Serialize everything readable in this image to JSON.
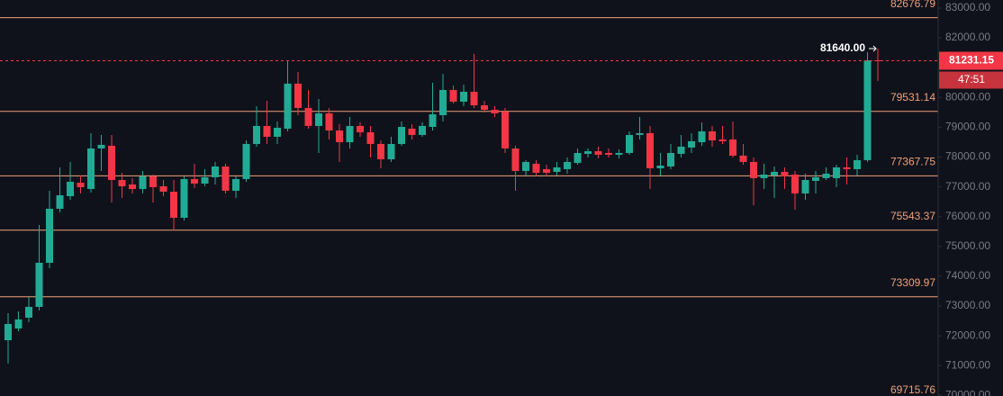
{
  "chart_data": {
    "type": "candlestick",
    "up_color": "#22ab94",
    "down_color": "#f23645",
    "level_color": "#f0a07a",
    "ylim": [
      69980,
      83270
    ],
    "yticks": [
      {
        "value": 70000,
        "label": "70000.00"
      },
      {
        "value": 71000,
        "label": "71000.00"
      },
      {
        "value": 72000,
        "label": "72000.00"
      },
      {
        "value": 73000,
        "label": "73000.00"
      },
      {
        "value": 74000,
        "label": "74000.00"
      },
      {
        "value": 75000,
        "label": "75000.00"
      },
      {
        "value": 76000,
        "label": "76000.00"
      },
      {
        "value": 77000,
        "label": "77000.00"
      },
      {
        "value": 78000,
        "label": "78000.00"
      },
      {
        "value": 79000,
        "label": "79000.00"
      },
      {
        "value": 80000,
        "label": "80000.00"
      },
      {
        "value": 82000,
        "label": "82000.00"
      },
      {
        "value": 83000,
        "label": "83000.00"
      }
    ],
    "levels": [
      82676.79,
      79531.14,
      77367.75,
      75543.37,
      73309.97,
      69715.76
    ],
    "high_annotation": {
      "value": 81640,
      "label": "81640.00"
    },
    "countdown": "47:51",
    "open": [
      71853,
      72246,
      72609,
      72971,
      74451,
      76263,
      76686,
      77139,
      76928,
      78287,
      78378,
      77230,
      77079,
      76928,
      77351,
      77019,
      76837,
      75961,
      77260,
      77109,
      77321,
      77683,
      76868,
      77260,
      78438,
      79043,
      78680,
      78952,
      80463,
      79647,
      79043,
      79466,
      78892,
      78499,
      79043,
      78831,
      78438,
      77925,
      78438,
      78952,
      78741,
      79012,
      79405,
      80251,
      79858,
      80190,
      79737,
      79586,
      79526,
      78287,
      77532,
      77774,
      77593,
      77502,
      77593,
      77804,
      78106,
      78197,
      78136,
      78076,
      78136,
      78741,
      78801,
      77623,
      77683,
      78106,
      78318,
      78499,
      78861,
      78590,
      78590,
      78046,
      77834,
      77291,
      77381,
      77502,
      77412,
      76777,
      77200,
      77291,
      77291,
      77653,
      77593,
      77895,
      81248
    ],
    "high": [
      72760,
      72820,
      73303,
      75720,
      76868,
      77653,
      77834,
      77381,
      78801,
      78741,
      78741,
      77472,
      77291,
      77532,
      77412,
      77230,
      77230,
      77351,
      77774,
      77593,
      77834,
      77774,
      77351,
      78559,
      79707,
      79888,
      79194,
      81218,
      80855,
      80251,
      79949,
      79647,
      79103,
      79345,
      79163,
      79043,
      78559,
      78680,
      79194,
      79103,
      79163,
      80493,
      80795,
      80402,
      80432,
      81460,
      79888,
      79707,
      79647,
      78378,
      77895,
      77895,
      77744,
      77834,
      77985,
      78287,
      78287,
      78348,
      78287,
      78257,
      78861,
      79345,
      79043,
      78136,
      78438,
      78741,
      78801,
      79163,
      79043,
      79043,
      79194,
      78438,
      77985,
      77774,
      77683,
      77653,
      77532,
      77442,
      77532,
      77653,
      77744,
      77985,
      78076,
      81520,
      81640
    ],
    "low": [
      71068,
      72155,
      72457,
      72851,
      74270,
      76143,
      76565,
      76777,
      76807,
      77532,
      76475,
      76626,
      76777,
      76777,
      76475,
      76686,
      75539,
      75871,
      76958,
      77019,
      77079,
      76777,
      76626,
      77170,
      78348,
      78438,
      78438,
      78861,
      79405,
      78952,
      78136,
      78590,
      77834,
      78287,
      78680,
      77985,
      77623,
      77834,
      78378,
      78590,
      78680,
      78892,
      79194,
      79798,
      79707,
      79647,
      79496,
      79345,
      78136,
      76868,
      77381,
      77351,
      77351,
      77381,
      77442,
      77744,
      77985,
      77955,
      77985,
      77955,
      78076,
      78590,
      76928,
      77381,
      77593,
      77985,
      78136,
      78378,
      78348,
      78438,
      77985,
      77744,
      76384,
      76928,
      76626,
      76928,
      76233,
      76565,
      76777,
      77230,
      76988,
      77079,
      77381,
      77834,
      80553
    ],
    "close": [
      72397,
      72549,
      72971,
      74451,
      76263,
      76716,
      77170,
      76988,
      78287,
      78408,
      77230,
      77019,
      76928,
      77351,
      76988,
      76837,
      75961,
      77260,
      77109,
      77321,
      77683,
      76868,
      77260,
      78438,
      79043,
      78680,
      78982,
      80463,
      79647,
      79043,
      79466,
      78892,
      78499,
      79043,
      78831,
      78438,
      77925,
      78438,
      79012,
      78741,
      79043,
      79435,
      80251,
      79858,
      80190,
      79737,
      79586,
      79466,
      78287,
      77532,
      77834,
      77472,
      77472,
      77653,
      77834,
      78136,
      78197,
      78076,
      78076,
      78136,
      78741,
      78801,
      77623,
      77713,
      78136,
      78348,
      78529,
      78861,
      78559,
      78529,
      78046,
      77834,
      77291,
      77412,
      77502,
      77351,
      76777,
      77230,
      77321,
      77442,
      77653,
      77593,
      77895,
      81248,
      81231.15
    ]
  }
}
